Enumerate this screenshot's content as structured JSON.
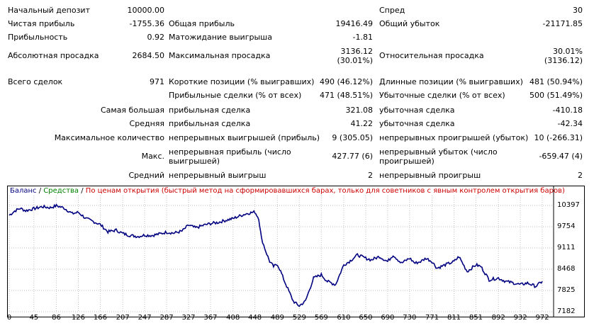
{
  "stats": {
    "initial_deposit_label": "Начальный депозит",
    "initial_deposit_value": "10000.00",
    "spread_label": "Спред",
    "spread_value": "30",
    "net_profit_label": "Чистая прибыль",
    "net_profit_value": "-1755.36",
    "gross_profit_label": "Общая прибыль",
    "gross_profit_value": "19416.49",
    "gross_loss_label": "Общий убыток",
    "gross_loss_value": "-21171.85",
    "profit_factor_label": "Прибыльность",
    "profit_factor_value": "0.92",
    "expected_payoff_label": "Матожидание выигрыша",
    "expected_payoff_value": "-1.81",
    "abs_drawdown_label": "Абсолютная просадка",
    "abs_drawdown_value": "2684.50",
    "max_drawdown_label": "Максимальная просадка",
    "max_drawdown_value_1": "3136.12",
    "max_drawdown_value_2": "(30.01%)",
    "rel_drawdown_label": "Относительная просадка",
    "rel_drawdown_value_1": "30.01%",
    "rel_drawdown_value_2": "(3136.12)",
    "total_trades_label": "Всего сделок",
    "total_trades_value": "971",
    "short_label": "Короткие позиции (% выигравших)",
    "short_value": "490 (46.12%)",
    "long_label": "Длинные позиции (% выигравших)",
    "long_value": "481 (50.94%)",
    "profit_trades_label": "Прибыльные сделки (% от всех)",
    "profit_trades_value": "471 (48.51%)",
    "loss_trades_label": "Убыточные сделки (% от всех)",
    "loss_trades_value": "500 (51.49%)",
    "largest_label": "Самая большая",
    "largest_profit_label": "прибыльная сделка",
    "largest_profit_value": "321.08",
    "largest_loss_label": "убыточная сделка",
    "largest_loss_value": "-410.18",
    "average_label": "Средняя",
    "average_profit_label": "прибыльная сделка",
    "average_profit_value": "41.22",
    "average_loss_label": "убыточная сделка",
    "average_loss_value": "-42.34",
    "max_count_label": "Максимальное количество",
    "max_consec_wins_label": "непрерывных выигрышей (прибыль)",
    "max_consec_wins_value": "9 (305.05)",
    "max_consec_losses_label": "непрерывных проигрышей (убыток)",
    "max_consec_losses_value": "10 (-266.31)",
    "max_label": "Макс.",
    "max_consec_profit_label": "непрерывная прибыль (число выигрышей)",
    "max_consec_profit_value": "427.77 (6)",
    "max_consec_loss_label": "непрерывный убыток (число проигрышей)",
    "max_consec_loss_value": "-659.47 (4)",
    "avg_label": "Средний",
    "avg_consec_wins_label": "непрерывный выигрыш",
    "avg_consec_wins_value": "2",
    "avg_consec_losses_label": "непрерывный проигрыш",
    "avg_consec_losses_value": "2"
  },
  "legend": {
    "balance": "Баланс",
    "sep1": "/",
    "equity": "Средства",
    "sep2": "/",
    "mode": "По ценам открытия (быстрый метод на сформировавшихся барах, только для советников с явным контролем открытия баров)"
  },
  "colors": {
    "balance": "#000080",
    "equity": "#008000",
    "mode": "#cc0000",
    "grid": "#c0c0c0"
  },
  "chart_data": {
    "type": "line",
    "series": [
      {
        "name": "Баланс",
        "x": [
          0,
          10,
          20,
          30,
          45,
          60,
          75,
          86,
          100,
          115,
          126,
          140,
          155,
          166,
          180,
          195,
          207,
          220,
          235,
          247,
          260,
          275,
          287,
          300,
          315,
          327,
          340,
          355,
          367,
          380,
          395,
          408,
          420,
          435,
          448,
          455,
          460,
          468,
          475,
          482,
          489,
          495,
          502,
          510,
          518,
          525,
          529,
          540,
          555,
          569,
          580,
          595,
          610,
          620,
          635,
          650,
          660,
          675,
          690,
          700,
          715,
          730,
          740,
          750,
          760,
          771,
          780,
          795,
          811,
          820,
          835,
          851,
          860,
          875,
          892,
          905,
          920,
          932,
          945,
          960,
          972
        ],
        "values": [
          10100,
          10230,
          10310,
          10240,
          10300,
          10360,
          10330,
          10390,
          10320,
          10150,
          10190,
          10000,
          9900,
          9820,
          9600,
          9650,
          9550,
          9490,
          9460,
          9500,
          9490,
          9540,
          9590,
          9560,
          9620,
          9800,
          9720,
          9800,
          9850,
          9880,
          9950,
          10000,
          10080,
          10160,
          10200,
          10000,
          9400,
          9000,
          8700,
          8550,
          8620,
          8400,
          8100,
          7800,
          7500,
          7400,
          7360,
          7500,
          8200,
          8300,
          8100,
          8000,
          8600,
          8700,
          8900,
          8800,
          8750,
          8850,
          8700,
          8900,
          8650,
          8800,
          8650,
          8700,
          8800,
          8700,
          8500,
          8600,
          8700,
          8850,
          8400,
          8600,
          8550,
          8150,
          8200,
          8100,
          8050,
          8000,
          8050,
          7950,
          8100
        ]
      }
    ],
    "x_ticks": [
      "0",
      "45",
      "86",
      "126",
      "166",
      "207",
      "247",
      "287",
      "327",
      "367",
      "408",
      "448",
      "489",
      "529",
      "569",
      "610",
      "650",
      "690",
      "730",
      "771",
      "811",
      "851",
      "892",
      "932",
      "972"
    ],
    "y_ticks": [
      "10397",
      "9754",
      "9111",
      "8468",
      "7825",
      "7182"
    ],
    "xlim": [
      0,
      990
    ],
    "ylim": [
      7182,
      10612
    ],
    "grid": true
  }
}
